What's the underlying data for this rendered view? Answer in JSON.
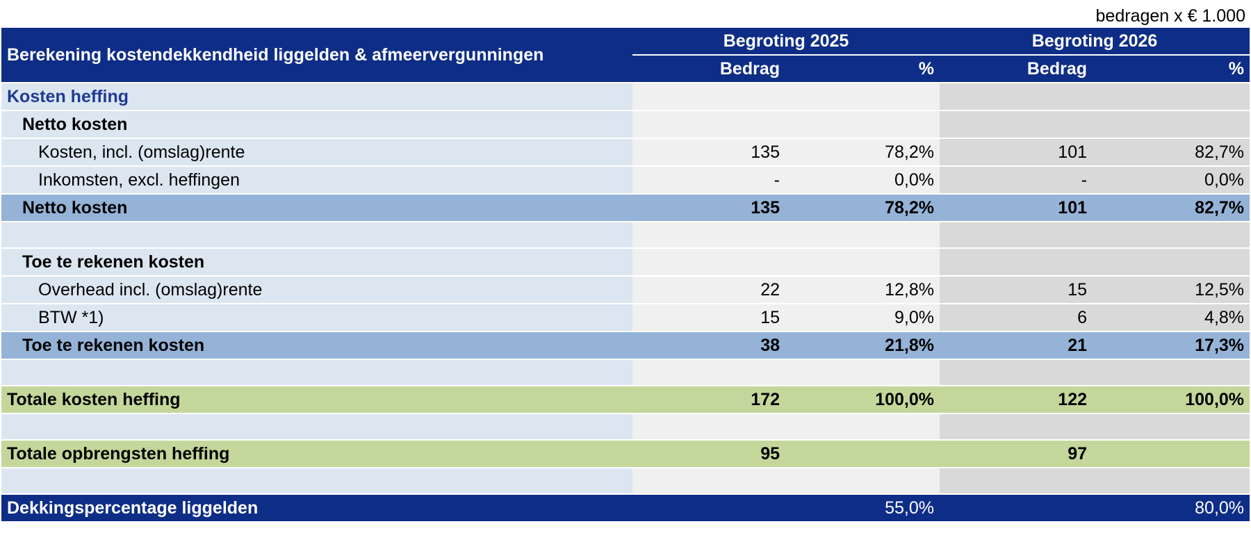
{
  "note": "bedragen x € 1.000",
  "table": {
    "title": "Berekening kostendekkendheid liggelden & afmeervergunningen",
    "years": [
      "Begroting 2025",
      "Begroting 2026"
    ],
    "col_bedrag": "Bedrag",
    "col_pct": "%",
    "rows": [
      {
        "label": "Kosten heffing",
        "v": [
          "",
          "",
          "",
          ""
        ]
      },
      {
        "label": "Netto kosten",
        "v": [
          "",
          "",
          "",
          ""
        ]
      },
      {
        "label": "Kosten, incl. (omslag)rente",
        "v": [
          "135",
          "78,2%",
          "101",
          "82,7%"
        ]
      },
      {
        "label": "Inkomsten, excl. heffingen",
        "v": [
          "-",
          "0,0%",
          "-",
          "0,0%"
        ]
      },
      {
        "label": "Netto kosten",
        "v": [
          "135",
          "78,2%",
          "101",
          "82,7%"
        ]
      },
      {
        "label": "",
        "v": [
          "",
          "",
          "",
          ""
        ]
      },
      {
        "label": "Toe te rekenen kosten",
        "v": [
          "",
          "",
          "",
          ""
        ]
      },
      {
        "label": "Overhead incl. (omslag)rente",
        "v": [
          "22",
          "12,8%",
          "15",
          "12,5%"
        ]
      },
      {
        "label": "BTW *1)",
        "v": [
          "15",
          "9,0%",
          "6",
          "4,8%"
        ]
      },
      {
        "label": "Toe te rekenen kosten",
        "v": [
          "38",
          "21,8%",
          "21",
          "17,3%"
        ]
      },
      {
        "label": "",
        "v": [
          "",
          "",
          "",
          ""
        ]
      },
      {
        "label": "Totale kosten heffing",
        "v": [
          "172",
          "100,0%",
          "122",
          "100,0%"
        ]
      },
      {
        "label": "",
        "v": [
          "",
          "",
          "",
          ""
        ]
      },
      {
        "label": "Totale opbrengsten heffing",
        "v": [
          "95",
          "",
          "97",
          ""
        ]
      },
      {
        "label": "",
        "v": [
          "",
          "",
          "",
          ""
        ]
      },
      {
        "label": "Dekkingspercentage liggelden",
        "v": [
          "",
          "55,0%",
          "",
          "80,0%"
        ]
      }
    ]
  }
}
